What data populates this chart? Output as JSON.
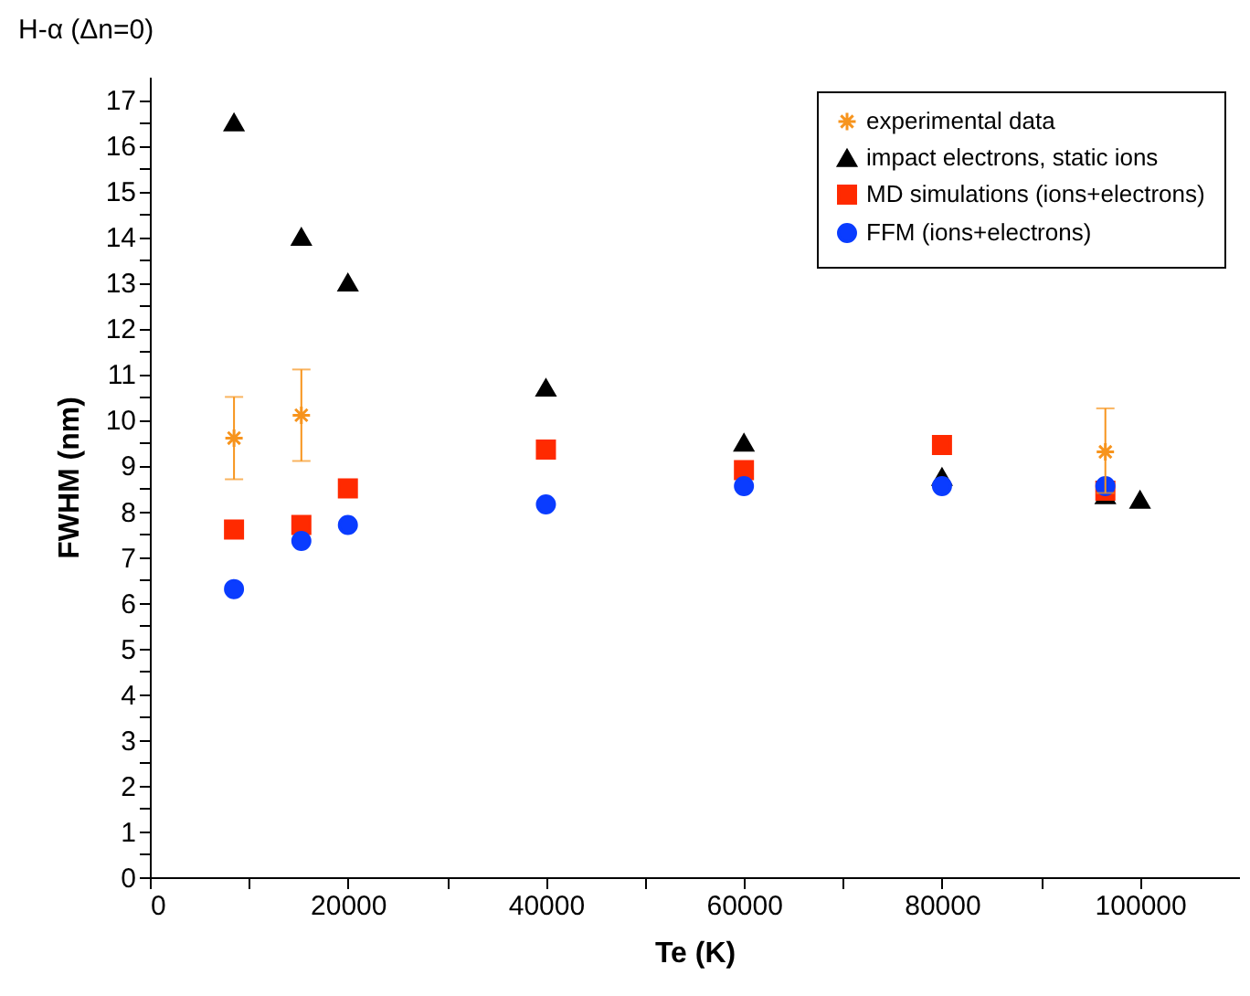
{
  "chart_data": {
    "type": "scatter",
    "title": "H-α (Δn=0)",
    "xlabel": "Te (K)",
    "ylabel": "FWHM (nm)",
    "xlim": [
      0,
      110000
    ],
    "xticks": [
      0,
      {
        "value": 10000,
        "label": null
      },
      20000,
      {
        "value": 30000,
        "label": null
      },
      40000,
      {
        "value": 50000,
        "label": null
      },
      60000,
      {
        "value": 70000,
        "label": null
      },
      80000,
      {
        "value": 90000,
        "label": null
      },
      100000
    ],
    "ylim": [
      0,
      17.5
    ],
    "yticks": [
      0,
      {
        "value": 0.5,
        "label": null
      },
      1,
      {
        "value": 1.5,
        "label": null
      },
      2,
      {
        "value": 2.5,
        "label": null
      },
      3,
      {
        "value": 3.5,
        "label": null
      },
      4,
      {
        "value": 4.5,
        "label": null
      },
      5,
      {
        "value": 5.5,
        "label": null
      },
      6,
      {
        "value": 6.5,
        "label": null
      },
      7,
      {
        "value": 7.5,
        "label": null
      },
      8,
      {
        "value": 8.5,
        "label": null
      },
      9,
      {
        "value": 9.5,
        "label": null
      },
      10,
      {
        "value": 10.5,
        "label": null
      },
      11,
      {
        "value": 11.5,
        "label": null
      },
      12,
      {
        "value": 12.5,
        "label": null
      },
      13,
      {
        "value": 13.5,
        "label": null
      },
      14,
      {
        "value": 14.5,
        "label": null
      },
      15,
      {
        "value": 15.5,
        "label": null
      },
      16,
      {
        "value": 16.5,
        "label": null
      },
      17
    ],
    "legend": "top right",
    "series": [
      {
        "name": "experimental data",
        "color": "#f7941d",
        "marker": "cross",
        "x": [
          8500,
          15300,
          96500
        ],
        "values": [
          9.6,
          10.1,
          9.3
        ],
        "errors": [
          [
            8.7,
            10.5
          ],
          [
            9.1,
            11.1
          ],
          [
            8.4,
            10.25
          ]
        ]
      },
      {
        "name": "impact electrons, static ions",
        "color": "#000000",
        "marker": "triangle",
        "x": [
          8500,
          15300,
          20000,
          40000,
          60000,
          80000,
          96500,
          100000
        ],
        "values": [
          16.5,
          14.0,
          13.0,
          10.7,
          9.5,
          8.75,
          8.35,
          8.25
        ]
      },
      {
        "name": "MD simulations (ions+electrons)",
        "color": "#ff2a00",
        "marker": "square",
        "x": [
          8500,
          15300,
          20000,
          40000,
          60000,
          80000,
          96500
        ],
        "values": [
          7.6,
          7.7,
          8.5,
          9.35,
          8.9,
          9.45,
          8.45
        ]
      },
      {
        "name": "FFM (ions+electrons)",
        "color": "#0a3cff",
        "marker": "circle",
        "x": [
          8500,
          15300,
          20000,
          40000,
          60000,
          80000,
          96500
        ],
        "values": [
          6.3,
          7.35,
          7.7,
          8.15,
          8.55,
          8.55,
          8.55
        ]
      }
    ]
  }
}
